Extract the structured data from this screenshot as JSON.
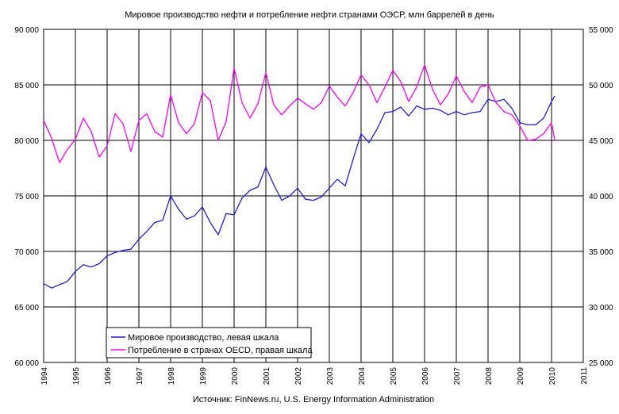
{
  "chart_data": {
    "type": "line",
    "title": "Мировое производство нефти и потребление нефти странами ОЭСР, млн баррелей в день",
    "source": "Источник: FinNews.ru, U.S. Energy Information Administration",
    "x_ticks": [
      "1994",
      "1995",
      "1996",
      "1997",
      "1998",
      "1999",
      "2000",
      "2001",
      "2002",
      "2003",
      "2004",
      "2005",
      "2006",
      "2007",
      "2008",
      "2009",
      "2010",
      "2011"
    ],
    "x_range": [
      1994,
      2011
    ],
    "y_left": {
      "min": 60000,
      "max": 90000,
      "ticks": [
        "60 000",
        "65 000",
        "70 000",
        "75 000",
        "80 000",
        "85 000",
        "90 000"
      ]
    },
    "y_right": {
      "min": 25000,
      "max": 55000,
      "ticks": [
        "25 000",
        "30 000",
        "35 000",
        "40 000",
        "45 000",
        "50 000",
        "55 000"
      ]
    },
    "grid": true,
    "legend": {
      "position": "bottom-left"
    },
    "colors": {
      "production": "#1f1fdd",
      "consumption": "#ff00ff",
      "grid": "#000000",
      "plot_bg": "#ffffff"
    },
    "series": [
      {
        "name": "Мировое производство, левая шкала",
        "axis": "left",
        "x": [
          1994.0,
          1994.25,
          1994.5,
          1994.75,
          1995.0,
          1995.25,
          1995.5,
          1995.75,
          1996.0,
          1996.25,
          1996.5,
          1996.75,
          1997.0,
          1997.25,
          1997.5,
          1997.75,
          1998.0,
          1998.25,
          1998.5,
          1998.75,
          1999.0,
          1999.25,
          1999.5,
          1999.75,
          2000.0,
          2000.25,
          2000.5,
          2000.75,
          2001.0,
          2001.25,
          2001.5,
          2001.75,
          2002.0,
          2002.25,
          2002.5,
          2002.75,
          2003.0,
          2003.25,
          2003.5,
          2003.75,
          2004.0,
          2004.25,
          2004.5,
          2004.75,
          2005.0,
          2005.25,
          2005.5,
          2005.75,
          2006.0,
          2006.25,
          2006.5,
          2006.75,
          2007.0,
          2007.25,
          2007.5,
          2007.75,
          2008.0,
          2008.25,
          2008.5,
          2008.75,
          2009.0,
          2009.25,
          2009.5,
          2009.75,
          2010.0,
          2010.1
        ],
        "values": [
          67100,
          66700,
          67000,
          67300,
          68200,
          68800,
          68600,
          68900,
          69600,
          69900,
          70100,
          70200,
          71100,
          71800,
          72600,
          72800,
          75000,
          73800,
          72900,
          73200,
          74000,
          72600,
          71500,
          73400,
          73300,
          74800,
          75500,
          75800,
          77600,
          76000,
          74600,
          75000,
          75700,
          74700,
          74600,
          74900,
          75700,
          76500,
          75900,
          78300,
          80600,
          79800,
          81000,
          82500,
          82600,
          83000,
          82200,
          83100,
          82800,
          82900,
          82700,
          82300,
          82600,
          82300,
          82500,
          82600,
          83700,
          83500,
          83700,
          82900,
          81600,
          81400,
          81400,
          82000,
          83500,
          84000
        ]
      },
      {
        "name": "Потребление в странах OECD, правая шкала",
        "axis": "right",
        "x": [
          1994.0,
          1994.25,
          1994.5,
          1994.75,
          1995.0,
          1995.25,
          1995.5,
          1995.75,
          1996.0,
          1996.25,
          1996.5,
          1996.75,
          1997.0,
          1997.25,
          1997.5,
          1997.75,
          1998.0,
          1998.25,
          1998.5,
          1998.75,
          1999.0,
          1999.25,
          1999.5,
          1999.75,
          2000.0,
          2000.25,
          2000.5,
          2000.75,
          2001.0,
          2001.25,
          2001.5,
          2001.75,
          2002.0,
          2002.25,
          2002.5,
          2002.75,
          2003.0,
          2003.25,
          2003.5,
          2003.75,
          2004.0,
          2004.25,
          2004.5,
          2004.75,
          2005.0,
          2005.25,
          2005.5,
          2005.75,
          2006.0,
          2006.25,
          2006.5,
          2006.75,
          2007.0,
          2007.25,
          2007.5,
          2007.75,
          2008.0,
          2008.25,
          2008.5,
          2008.75,
          2009.0,
          2009.25,
          2009.5,
          2009.75,
          2010.0,
          2010.1
        ],
        "values": [
          46800,
          45200,
          43000,
          44200,
          45100,
          47000,
          45800,
          43500,
          44500,
          47400,
          46500,
          44000,
          46800,
          47400,
          45800,
          45300,
          49100,
          46600,
          45600,
          46500,
          49300,
          48600,
          45000,
          46700,
          51500,
          48400,
          47000,
          48300,
          51100,
          48200,
          47300,
          48100,
          48800,
          48300,
          47800,
          48400,
          49900,
          48900,
          48100,
          49300,
          50900,
          50000,
          48400,
          49800,
          51300,
          50300,
          48500,
          49800,
          51800,
          49600,
          48200,
          49200,
          50800,
          49400,
          48400,
          49800,
          50000,
          48400,
          47600,
          47300,
          46300,
          45000,
          45100,
          45600,
          46600,
          45000
        ]
      }
    ]
  }
}
